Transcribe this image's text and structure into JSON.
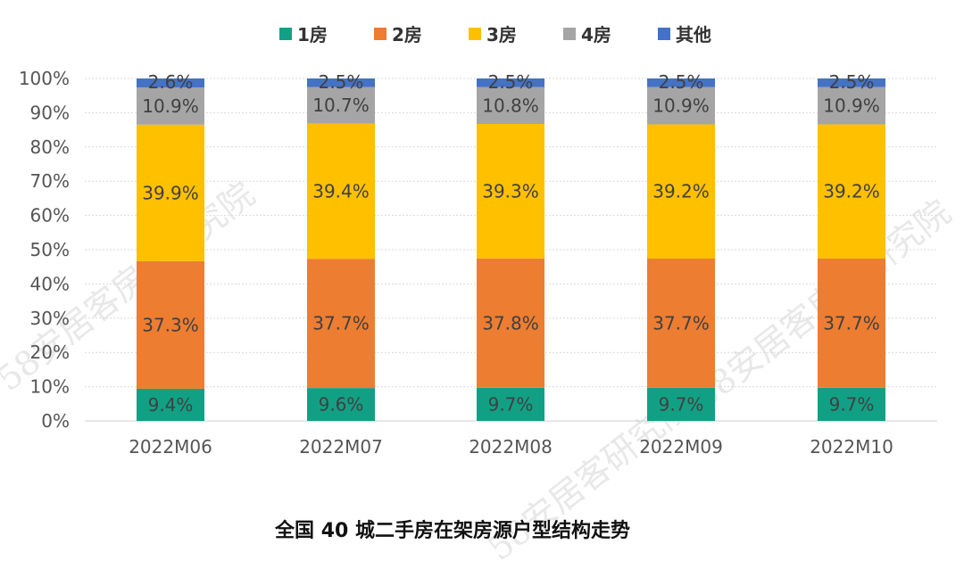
{
  "chart_data": {
    "type": "bar",
    "stacked": true,
    "normalized": true,
    "title": "全国 40 城二手房在架房源户型结构走势",
    "categories": [
      "2022M06",
      "2022M07",
      "2022M08",
      "2022M09",
      "2022M10"
    ],
    "y_ticks": [
      "0%",
      "10%",
      "20%",
      "30%",
      "40%",
      "50%",
      "60%",
      "70%",
      "80%",
      "90%",
      "100%"
    ],
    "ylim": [
      0,
      100
    ],
    "legend_position": "top",
    "series": [
      {
        "name": "1房",
        "color": "#12a085",
        "values": [
          9.4,
          9.6,
          9.7,
          9.7,
          9.7
        ],
        "labels": [
          "9.4%",
          "9.6%",
          "9.7%",
          "9.7%",
          "9.7%"
        ]
      },
      {
        "name": "2房",
        "color": "#ed7d31",
        "values": [
          37.3,
          37.7,
          37.8,
          37.7,
          37.7
        ],
        "labels": [
          "37.3%",
          "37.7%",
          "37.8%",
          "37.7%",
          "37.7%"
        ]
      },
      {
        "name": "3房",
        "color": "#ffc000",
        "values": [
          39.9,
          39.4,
          39.3,
          39.2,
          39.2
        ],
        "labels": [
          "39.9%",
          "39.4%",
          "39.3%",
          "39.2%",
          "39.2%"
        ]
      },
      {
        "name": "4房",
        "color": "#a5a5a5",
        "values": [
          10.9,
          10.7,
          10.8,
          10.9,
          10.9
        ],
        "labels": [
          "10.9%",
          "10.7%",
          "10.8%",
          "10.9%",
          "10.9%"
        ]
      },
      {
        "name": "其他",
        "color": "#4472c4",
        "values": [
          2.6,
          2.5,
          2.5,
          2.5,
          2.5
        ],
        "labels": [
          "2.6%",
          "2.5%",
          "2.5%",
          "2.5%",
          "2.5%"
        ]
      }
    ]
  },
  "watermark": [
    "58安居客房产研究院",
    "58安居客房产研究院",
    "58安居客研究院"
  ]
}
